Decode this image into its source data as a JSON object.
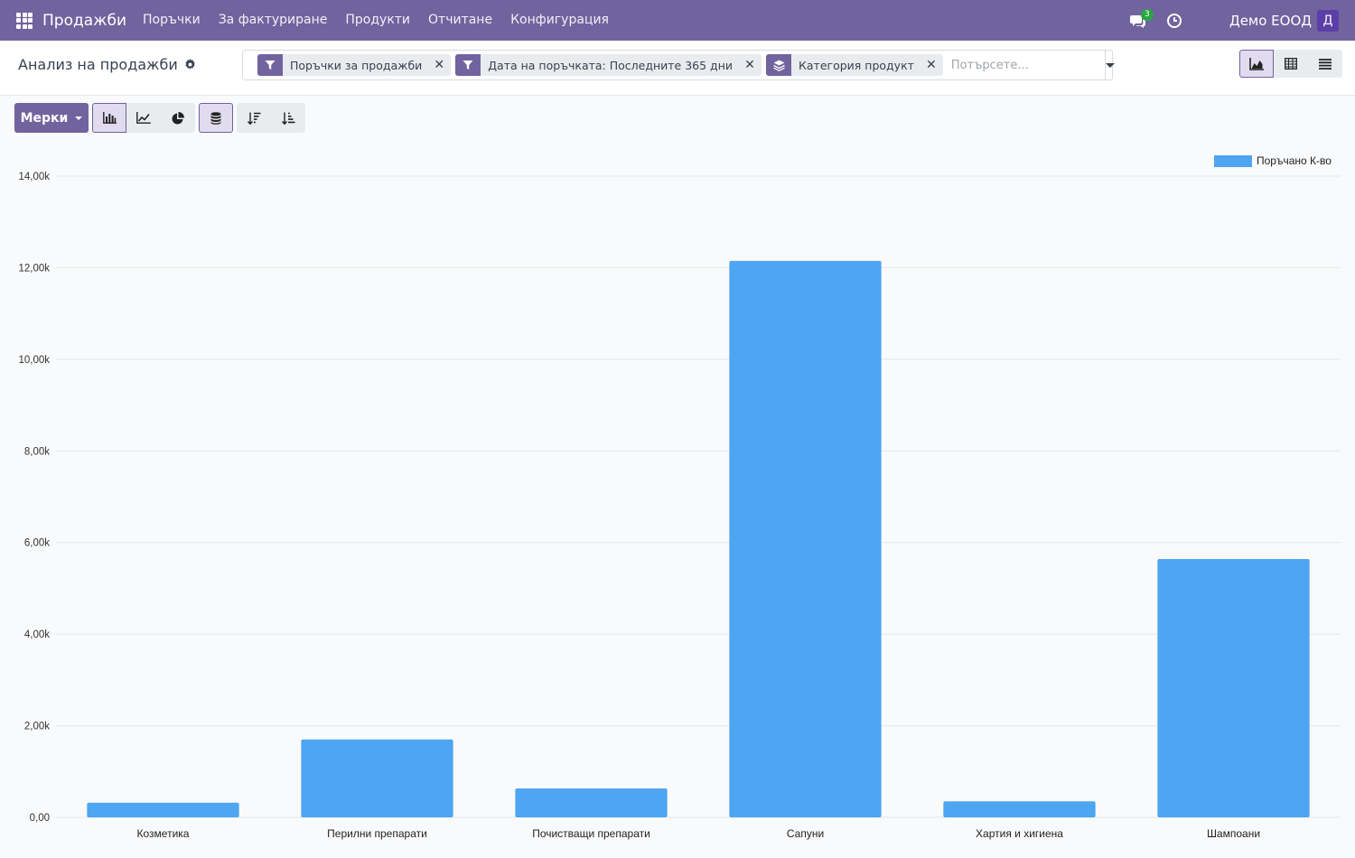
{
  "navbar": {
    "app_title": "Продажби",
    "menu": [
      "Поръчки",
      "За фактуриране",
      "Продукти",
      "Отчитане",
      "Конфигурация"
    ],
    "messages_count": "3",
    "company": "Демо ЕООД",
    "avatar_letter": "Д",
    "bg_color": "#71639e"
  },
  "control_panel": {
    "breadcrumb": "Анализ на продажби",
    "facets": [
      {
        "icon": "filter-icon",
        "label": "Поръчки за продажби"
      },
      {
        "icon": "filter-icon",
        "label": "Дата на поръчката: Последните 365 дни"
      },
      {
        "icon": "group-by-icon",
        "label": "Категория продукт"
      }
    ],
    "search_placeholder": "Потърсете...",
    "views": [
      "graph-view-icon",
      "pivot-view-icon",
      "list-view-icon"
    ],
    "active_view": "graph-view-icon"
  },
  "toolbar": {
    "measures_label": "Мерки",
    "chart_types": [
      "bar-chart-icon",
      "line-chart-icon",
      "pie-chart-icon"
    ],
    "active_chart_type": "bar-chart-icon",
    "stacked_active": true,
    "sort_buttons": [
      "sort-descending-icon",
      "sort-ascending-icon"
    ]
  },
  "chart_data": {
    "type": "bar",
    "categories": [
      "Козметика",
      "Перилни препарати",
      "Почистващи препарати",
      "Сапуни",
      "Хартия и хигиена",
      "Шампоани"
    ],
    "series": [
      {
        "name": "Поръчано К-во",
        "values": [
          320,
          1700,
          630,
          12150,
          350,
          5640
        ]
      }
    ],
    "ylim": [
      0,
      14000
    ],
    "yticks": [
      0,
      2000,
      4000,
      6000,
      8000,
      10000,
      12000,
      14000
    ],
    "ytick_labels": [
      "0,00",
      "2,00k",
      "4,00k",
      "6,00k",
      "8,00k",
      "10,00k",
      "12,00k",
      "14,00k"
    ],
    "bar_color": "#4ea5f1",
    "grid": true,
    "legend_position": "top-right"
  }
}
